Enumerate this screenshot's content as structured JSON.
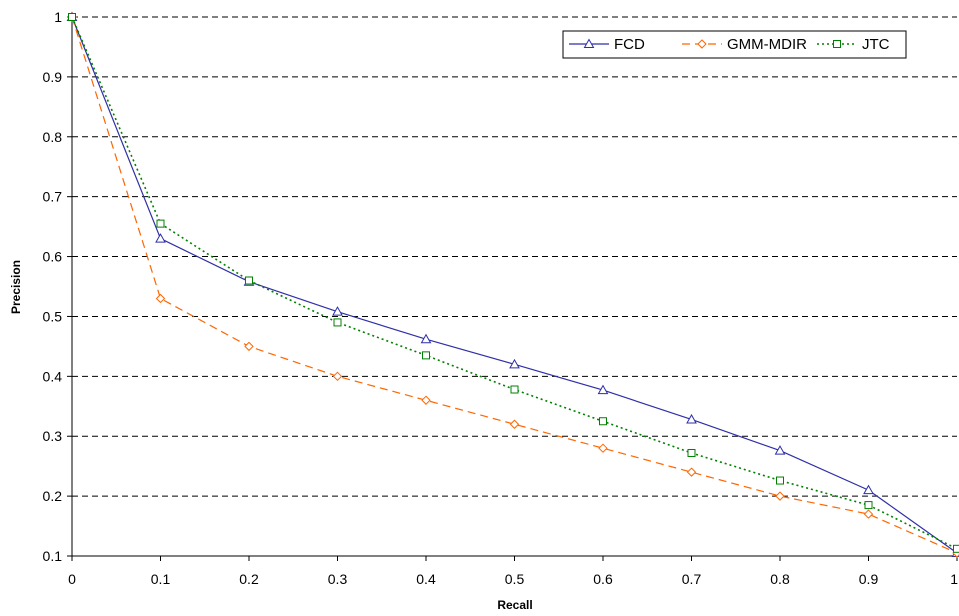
{
  "chart_data": {
    "type": "line",
    "title": "",
    "xlabel": "Recall",
    "ylabel": "Precision",
    "x": [
      0,
      0.1,
      0.2,
      0.3,
      0.4,
      0.5,
      0.6,
      0.7,
      0.8,
      0.9,
      1
    ],
    "xlim": [
      0,
      1
    ],
    "ylim": [
      0.1,
      1
    ],
    "xticks": [
      "0",
      "0.1",
      "0.2",
      "0.3",
      "0.4",
      "0.5",
      "0.6",
      "0.7",
      "0.8",
      "0.9",
      "1"
    ],
    "yticks": [
      "0.1",
      "0.2",
      "0.3",
      "0.4",
      "0.5",
      "0.6",
      "0.7",
      "0.8",
      "0.9",
      "1"
    ],
    "grid": "horizontal dashed",
    "legend_position": "top-right",
    "series": [
      {
        "name": "FCD",
        "color": "#2f2fa8",
        "line_style": "solid",
        "marker": "triangle",
        "values": [
          1.0,
          0.63,
          0.558,
          0.508,
          0.462,
          0.42,
          0.377,
          0.328,
          0.276,
          0.21,
          0.105
        ]
      },
      {
        "name": "GMM-MDIR",
        "color": "#ff6600",
        "line_style": "dashed",
        "marker": "diamond",
        "values": [
          1.0,
          0.53,
          0.45,
          0.4,
          0.36,
          0.32,
          0.28,
          0.24,
          0.2,
          0.17,
          0.105
        ]
      },
      {
        "name": "JTC",
        "color": "#008000",
        "line_style": "dotted",
        "marker": "square",
        "values": [
          1.0,
          0.655,
          0.56,
          0.49,
          0.435,
          0.378,
          0.325,
          0.272,
          0.226,
          0.185,
          0.112
        ]
      }
    ]
  }
}
